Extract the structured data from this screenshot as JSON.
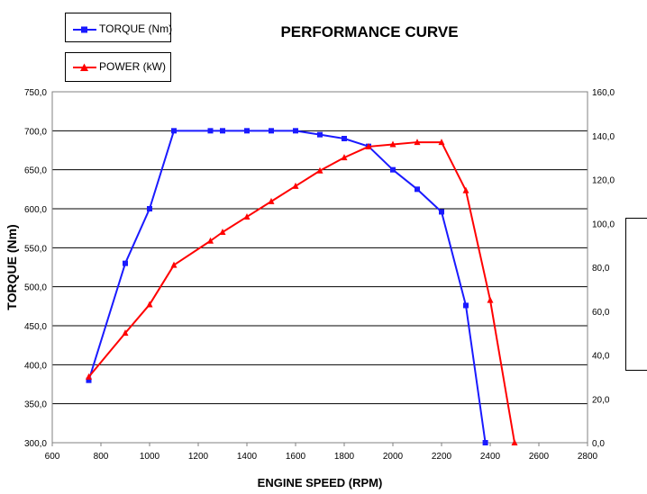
{
  "chart_data": {
    "type": "line",
    "title": "PERFORMANCE CURVE",
    "xlabel": "ENGINE SPEED (RPM)",
    "ylabel": "TORQUE (Nm)",
    "y2label": "POWER (kW)",
    "xlim": [
      600,
      2800
    ],
    "ylim": [
      300,
      750
    ],
    "y2lim": [
      0,
      160
    ],
    "x_ticks": [
      "600",
      "800",
      "1000",
      "1200",
      "1400",
      "1600",
      "1800",
      "2000",
      "2200",
      "2400",
      "2600",
      "2800"
    ],
    "y_ticks": [
      "300,0",
      "350,0",
      "400,0",
      "450,0",
      "500,0",
      "550,0",
      "600,0",
      "650,0",
      "700,0",
      "750,0"
    ],
    "y2_ticks": [
      "0,0",
      "20,0",
      "40,0",
      "60,0",
      "80,0",
      "100,0",
      "120,0",
      "140,0",
      "160,0"
    ],
    "grid": "horizontal",
    "legend_position": "top-left",
    "series": [
      {
        "name": "TORQUE (Nm)",
        "axis": "left",
        "color": "#1a1aff",
        "marker": "square",
        "x": [
          750,
          900,
          1000,
          1100,
          1250,
          1300,
          1400,
          1500,
          1600,
          1700,
          1800,
          1900,
          2000,
          2100,
          2200,
          2300,
          2380
        ],
        "y": [
          380,
          530,
          600,
          700,
          700,
          700,
          700,
          700,
          700,
          695,
          690,
          680,
          650,
          625,
          596,
          476,
          300
        ]
      },
      {
        "name": "POWER (kW)",
        "axis": "right",
        "color": "#ff0000",
        "marker": "triangle",
        "x": [
          750,
          900,
          1000,
          1100,
          1250,
          1300,
          1400,
          1500,
          1600,
          1700,
          1800,
          1900,
          2000,
          2100,
          2200,
          2300,
          2400,
          2500
        ],
        "y": [
          30,
          50,
          63,
          81,
          92,
          96,
          103,
          110,
          117,
          124,
          130,
          135,
          136,
          137,
          137,
          115,
          65,
          0
        ]
      }
    ]
  }
}
